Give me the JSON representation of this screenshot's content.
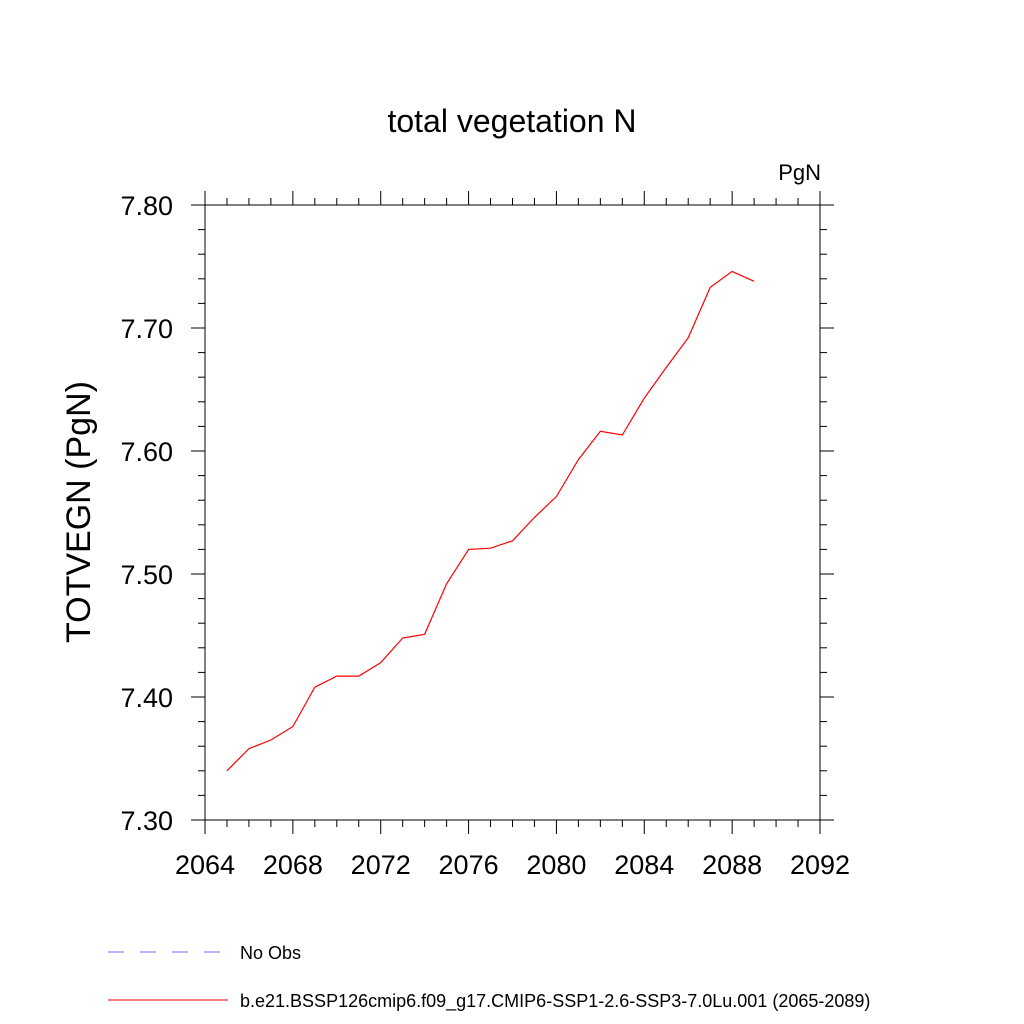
{
  "chart_data": {
    "type": "line",
    "title": "total vegetation N",
    "units_label": "PgN",
    "ylabel": "TOTVEGN  (PgN)",
    "xlabel": "",
    "xlim": [
      2064,
      2092
    ],
    "ylim": [
      7.3,
      7.8
    ],
    "xticks": [
      "2064",
      "2068",
      "2072",
      "2076",
      "2080",
      "2084",
      "2088",
      "2092"
    ],
    "yticks": [
      "7.30",
      "7.40",
      "7.50",
      "7.60",
      "7.70",
      "7.80"
    ],
    "grid": false,
    "legend_position": "bottom",
    "series": [
      {
        "name": "b.e21.BSSP126cmip6.f09_g17.CMIP6-SSP1-2.6-SSP3-7.0Lu.001 (2065-2089)",
        "color": "#ff0000",
        "style": "solid",
        "x": [
          2065,
          2066,
          2067,
          2068,
          2069,
          2070,
          2071,
          2072,
          2073,
          2074,
          2075,
          2076,
          2077,
          2078,
          2079,
          2080,
          2081,
          2082,
          2083,
          2084,
          2085,
          2086,
          2087,
          2088,
          2089
        ],
        "values": [
          7.34,
          7.358,
          7.365,
          7.376,
          7.408,
          7.417,
          7.417,
          7.428,
          7.448,
          7.451,
          7.492,
          7.52,
          7.521,
          7.527,
          7.546,
          7.563,
          7.593,
          7.616,
          7.613,
          7.643,
          7.668,
          7.692,
          7.733,
          7.746,
          7.738
        ]
      }
    ],
    "legend": [
      {
        "label": "No Obs",
        "color": "#7b68ee",
        "style": "dashed"
      },
      {
        "label": "b.e21.BSSP126cmip6.f09_g17.CMIP6-SSP1-2.6-SSP3-7.0Lu.001 (2065-2089)",
        "color": "#ff0000",
        "style": "solid"
      }
    ]
  }
}
